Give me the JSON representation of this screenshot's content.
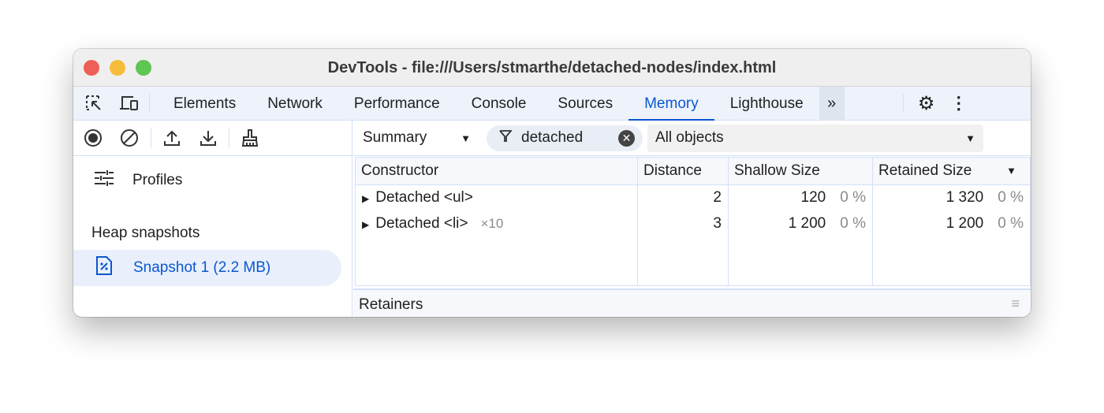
{
  "window": {
    "title": "DevTools - file:///Users/stmarthe/detached-nodes/index.html"
  },
  "tabs": [
    {
      "label": "Elements"
    },
    {
      "label": "Network"
    },
    {
      "label": "Performance"
    },
    {
      "label": "Console"
    },
    {
      "label": "Sources"
    },
    {
      "label": "Memory",
      "active": true
    },
    {
      "label": "Lighthouse"
    }
  ],
  "toolbar": {
    "view": "Summary",
    "filter": "detached",
    "objects": "All objects"
  },
  "sidebar": {
    "profiles": "Profiles",
    "section": "Heap snapshots",
    "snapshot": "Snapshot 1 (2.2 MB)"
  },
  "table": {
    "headers": [
      "Constructor",
      "Distance",
      "Shallow Size",
      "Retained Size"
    ],
    "rows": [
      {
        "name": "Detached <ul>",
        "count": "",
        "distance": "2",
        "shallow": "120",
        "shallow_pct": "0 %",
        "retained": "1 320",
        "retained_pct": "0 %"
      },
      {
        "name": "Detached <li>",
        "count": "×10",
        "distance": "3",
        "shallow": "1 200",
        "shallow_pct": "0 %",
        "retained": "1 200",
        "retained_pct": "0 %"
      }
    ]
  },
  "retainers": "Retainers",
  "colors": {
    "accent": "#0b57d0",
    "tabbar": "#edf2fb"
  }
}
